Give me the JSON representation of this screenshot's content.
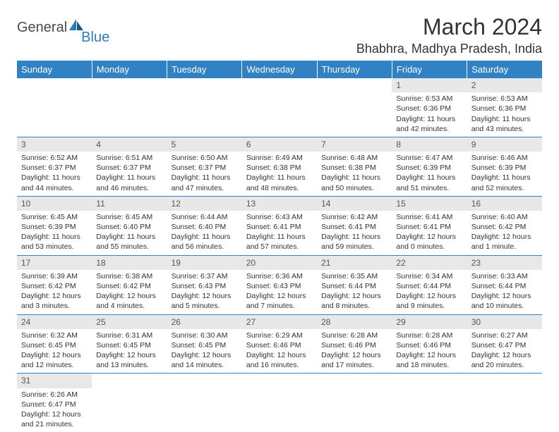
{
  "logo": {
    "general": "General",
    "blue": "Blue"
  },
  "title": "March 2024",
  "location": "Bhabhra, Madhya Pradesh, India",
  "colors": {
    "header_bg": "#3082c4",
    "header_text": "#ffffff",
    "daynum_bg": "#e8e8e8",
    "cell_border": "#3082c4",
    "text": "#333333",
    "background": "#ffffff",
    "logo_gray": "#4a4a4a",
    "logo_blue": "#2b7bba"
  },
  "typography": {
    "title_fontsize": 32,
    "location_fontsize": 18,
    "header_fontsize": 13,
    "daynum_fontsize": 12,
    "body_fontsize": 10.5,
    "logo_fontsize": 20,
    "font_family": "Arial"
  },
  "weekdays": [
    "Sunday",
    "Monday",
    "Tuesday",
    "Wednesday",
    "Thursday",
    "Friday",
    "Saturday"
  ],
  "weeks": [
    [
      {
        "day": "",
        "sunrise": "",
        "sunset": "",
        "daylight": ""
      },
      {
        "day": "",
        "sunrise": "",
        "sunset": "",
        "daylight": ""
      },
      {
        "day": "",
        "sunrise": "",
        "sunset": "",
        "daylight": ""
      },
      {
        "day": "",
        "sunrise": "",
        "sunset": "",
        "daylight": ""
      },
      {
        "day": "",
        "sunrise": "",
        "sunset": "",
        "daylight": ""
      },
      {
        "day": "1",
        "sunrise": "Sunrise: 6:53 AM",
        "sunset": "Sunset: 6:36 PM",
        "daylight": "Daylight: 11 hours and 42 minutes."
      },
      {
        "day": "2",
        "sunrise": "Sunrise: 6:53 AM",
        "sunset": "Sunset: 6:36 PM",
        "daylight": "Daylight: 11 hours and 43 minutes."
      }
    ],
    [
      {
        "day": "3",
        "sunrise": "Sunrise: 6:52 AM",
        "sunset": "Sunset: 6:37 PM",
        "daylight": "Daylight: 11 hours and 44 minutes."
      },
      {
        "day": "4",
        "sunrise": "Sunrise: 6:51 AM",
        "sunset": "Sunset: 6:37 PM",
        "daylight": "Daylight: 11 hours and 46 minutes."
      },
      {
        "day": "5",
        "sunrise": "Sunrise: 6:50 AM",
        "sunset": "Sunset: 6:37 PM",
        "daylight": "Daylight: 11 hours and 47 minutes."
      },
      {
        "day": "6",
        "sunrise": "Sunrise: 6:49 AM",
        "sunset": "Sunset: 6:38 PM",
        "daylight": "Daylight: 11 hours and 48 minutes."
      },
      {
        "day": "7",
        "sunrise": "Sunrise: 6:48 AM",
        "sunset": "Sunset: 6:38 PM",
        "daylight": "Daylight: 11 hours and 50 minutes."
      },
      {
        "day": "8",
        "sunrise": "Sunrise: 6:47 AM",
        "sunset": "Sunset: 6:39 PM",
        "daylight": "Daylight: 11 hours and 51 minutes."
      },
      {
        "day": "9",
        "sunrise": "Sunrise: 6:46 AM",
        "sunset": "Sunset: 6:39 PM",
        "daylight": "Daylight: 11 hours and 52 minutes."
      }
    ],
    [
      {
        "day": "10",
        "sunrise": "Sunrise: 6:45 AM",
        "sunset": "Sunset: 6:39 PM",
        "daylight": "Daylight: 11 hours and 53 minutes."
      },
      {
        "day": "11",
        "sunrise": "Sunrise: 6:45 AM",
        "sunset": "Sunset: 6:40 PM",
        "daylight": "Daylight: 11 hours and 55 minutes."
      },
      {
        "day": "12",
        "sunrise": "Sunrise: 6:44 AM",
        "sunset": "Sunset: 6:40 PM",
        "daylight": "Daylight: 11 hours and 56 minutes."
      },
      {
        "day": "13",
        "sunrise": "Sunrise: 6:43 AM",
        "sunset": "Sunset: 6:41 PM",
        "daylight": "Daylight: 11 hours and 57 minutes."
      },
      {
        "day": "14",
        "sunrise": "Sunrise: 6:42 AM",
        "sunset": "Sunset: 6:41 PM",
        "daylight": "Daylight: 11 hours and 59 minutes."
      },
      {
        "day": "15",
        "sunrise": "Sunrise: 6:41 AM",
        "sunset": "Sunset: 6:41 PM",
        "daylight": "Daylight: 12 hours and 0 minutes."
      },
      {
        "day": "16",
        "sunrise": "Sunrise: 6:40 AM",
        "sunset": "Sunset: 6:42 PM",
        "daylight": "Daylight: 12 hours and 1 minute."
      }
    ],
    [
      {
        "day": "17",
        "sunrise": "Sunrise: 6:39 AM",
        "sunset": "Sunset: 6:42 PM",
        "daylight": "Daylight: 12 hours and 3 minutes."
      },
      {
        "day": "18",
        "sunrise": "Sunrise: 6:38 AM",
        "sunset": "Sunset: 6:42 PM",
        "daylight": "Daylight: 12 hours and 4 minutes."
      },
      {
        "day": "19",
        "sunrise": "Sunrise: 6:37 AM",
        "sunset": "Sunset: 6:43 PM",
        "daylight": "Daylight: 12 hours and 5 minutes."
      },
      {
        "day": "20",
        "sunrise": "Sunrise: 6:36 AM",
        "sunset": "Sunset: 6:43 PM",
        "daylight": "Daylight: 12 hours and 7 minutes."
      },
      {
        "day": "21",
        "sunrise": "Sunrise: 6:35 AM",
        "sunset": "Sunset: 6:44 PM",
        "daylight": "Daylight: 12 hours and 8 minutes."
      },
      {
        "day": "22",
        "sunrise": "Sunrise: 6:34 AM",
        "sunset": "Sunset: 6:44 PM",
        "daylight": "Daylight: 12 hours and 9 minutes."
      },
      {
        "day": "23",
        "sunrise": "Sunrise: 6:33 AM",
        "sunset": "Sunset: 6:44 PM",
        "daylight": "Daylight: 12 hours and 10 minutes."
      }
    ],
    [
      {
        "day": "24",
        "sunrise": "Sunrise: 6:32 AM",
        "sunset": "Sunset: 6:45 PM",
        "daylight": "Daylight: 12 hours and 12 minutes."
      },
      {
        "day": "25",
        "sunrise": "Sunrise: 6:31 AM",
        "sunset": "Sunset: 6:45 PM",
        "daylight": "Daylight: 12 hours and 13 minutes."
      },
      {
        "day": "26",
        "sunrise": "Sunrise: 6:30 AM",
        "sunset": "Sunset: 6:45 PM",
        "daylight": "Daylight: 12 hours and 14 minutes."
      },
      {
        "day": "27",
        "sunrise": "Sunrise: 6:29 AM",
        "sunset": "Sunset: 6:46 PM",
        "daylight": "Daylight: 12 hours and 16 minutes."
      },
      {
        "day": "28",
        "sunrise": "Sunrise: 6:28 AM",
        "sunset": "Sunset: 6:46 PM",
        "daylight": "Daylight: 12 hours and 17 minutes."
      },
      {
        "day": "29",
        "sunrise": "Sunrise: 6:28 AM",
        "sunset": "Sunset: 6:46 PM",
        "daylight": "Daylight: 12 hours and 18 minutes."
      },
      {
        "day": "30",
        "sunrise": "Sunrise: 6:27 AM",
        "sunset": "Sunset: 6:47 PM",
        "daylight": "Daylight: 12 hours and 20 minutes."
      }
    ],
    [
      {
        "day": "31",
        "sunrise": "Sunrise: 6:26 AM",
        "sunset": "Sunset: 6:47 PM",
        "daylight": "Daylight: 12 hours and 21 minutes."
      },
      {
        "day": "",
        "sunrise": "",
        "sunset": "",
        "daylight": ""
      },
      {
        "day": "",
        "sunrise": "",
        "sunset": "",
        "daylight": ""
      },
      {
        "day": "",
        "sunrise": "",
        "sunset": "",
        "daylight": ""
      },
      {
        "day": "",
        "sunrise": "",
        "sunset": "",
        "daylight": ""
      },
      {
        "day": "",
        "sunrise": "",
        "sunset": "",
        "daylight": ""
      },
      {
        "day": "",
        "sunrise": "",
        "sunset": "",
        "daylight": ""
      }
    ]
  ]
}
